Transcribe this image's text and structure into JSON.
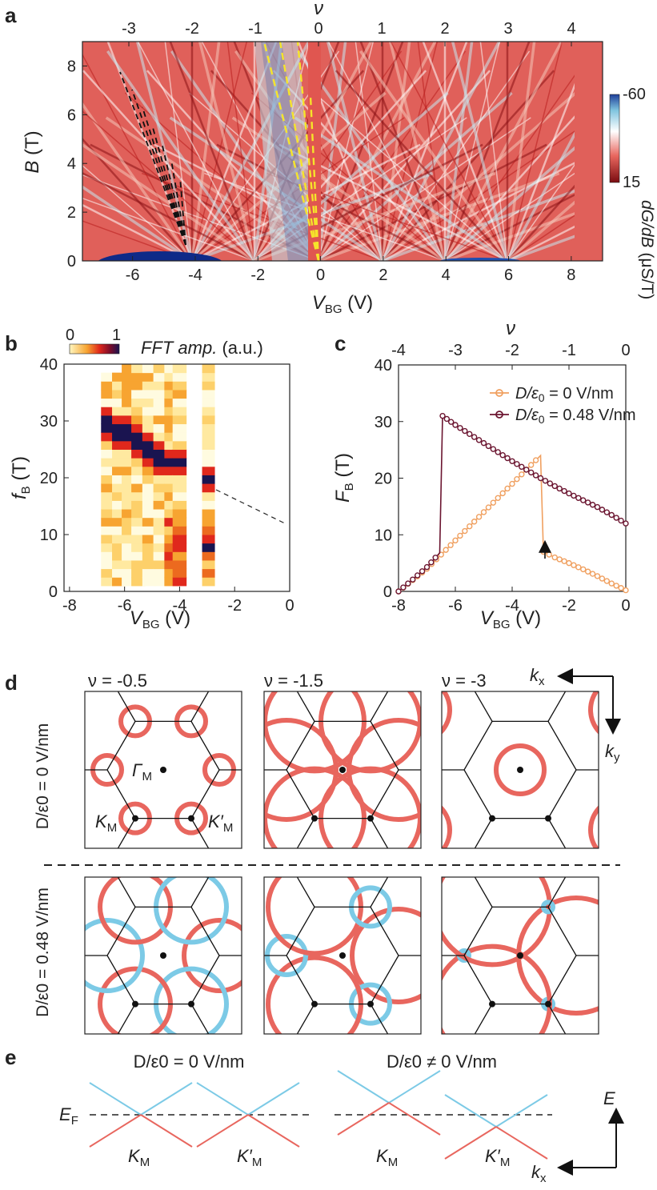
{
  "panels": {
    "a": {
      "label": "a",
      "top_axis_title": "ν",
      "top_ticks": [
        "-3",
        "-2",
        "-1",
        "0",
        "1",
        "2",
        "3",
        "4"
      ],
      "bottom_ticks": [
        "-6",
        "-4",
        "-2",
        "0",
        "2",
        "4",
        "6",
        "8"
      ],
      "y_ticks": [
        "0",
        "2",
        "4",
        "6",
        "8"
      ],
      "xlabel_main": "V",
      "xlabel_sub": "BG",
      "xlabel_unit": " (V)",
      "ylabel_main": "B",
      "ylabel_unit": " (T)",
      "colorbar": {
        "max_label": "-60",
        "min_label": "15",
        "title_main": "dG/dB",
        "title_unit": "(μS/T)"
      }
    },
    "b": {
      "label": "b",
      "colorbar": {
        "min_label": "0",
        "max_label": "1"
      },
      "title_main": "FFT amp.",
      "title_unit": " (a.u.)",
      "x_ticks": [
        "-8",
        "-6",
        "-4",
        "-2",
        "0"
      ],
      "y_ticks": [
        "0",
        "10",
        "20",
        "30",
        "40"
      ],
      "xlabel_main": "V",
      "xlabel_sub": "BG",
      "xlabel_unit": " (V)",
      "ylabel_main": "f",
      "ylabel_sub": "B",
      "ylabel_unit": " (T)"
    },
    "c": {
      "label": "c",
      "top_axis_title": "ν",
      "top_ticks": [
        "-4",
        "-3",
        "-2",
        "-1",
        "0"
      ],
      "x_ticks": [
        "-8",
        "-6",
        "-4",
        "-2",
        "0"
      ],
      "y_ticks": [
        "0",
        "10",
        "20",
        "30",
        "40"
      ],
      "xlabel_main": "V",
      "xlabel_sub": "BG",
      "xlabel_unit": " (V)",
      "ylabel_main": "F",
      "ylabel_sub": "B",
      "ylabel_unit": " (T)",
      "legend": [
        {
          "prefix": "D/ε",
          "sub": "0",
          "suffix": " = 0 V/nm",
          "color": "#f0a060"
        },
        {
          "prefix": "D/ε",
          "sub": "0",
          "suffix": " = 0.48 V/nm",
          "color": "#6b1530"
        }
      ]
    },
    "d": {
      "label": "d",
      "col_titles": [
        "ν = -0.5",
        "ν = -1.5",
        "ν = -3"
      ],
      "row_titles": [
        "D/ε0 = 0 V/nm",
        "D/ε0 = 0.48 V/nm"
      ],
      "axis_kx": "k",
      "axis_kx_sub": "x",
      "axis_ky": "k",
      "axis_ky_sub": "y",
      "point_labels": {
        "gamma": "Γ",
        "gamma_sub": "M",
        "K": "K",
        "K_sub": "M",
        "Kp": "K′",
        "Kp_sub": "M"
      }
    },
    "e": {
      "label": "e",
      "titles": [
        "D/ε0 = 0 V/nm",
        "D/ε0 ≠ 0 V/nm"
      ],
      "ef": "E",
      "ef_sub": "F",
      "valleys": [
        "K",
        "K′",
        "K",
        "K′"
      ],
      "valley_sub": "M",
      "axis_E": "E",
      "axis_kx": "k",
      "axis_kx_sub": "x"
    }
  },
  "colors": {
    "hole_red": "#e8665e",
    "elec_blue": "#7ccae6",
    "orange": "#f0a060",
    "maroon": "#6b1530",
    "yellow": "#f6e42a"
  },
  "chart_data": [
    {
      "id": "c",
      "type": "line",
      "xlabel": "VBG (V)",
      "ylabel": "FB (T)",
      "xlim": [
        -8,
        0
      ],
      "ylim": [
        0,
        40
      ],
      "top_axis": {
        "label": "ν",
        "range": [
          -4,
          0
        ]
      },
      "series": [
        {
          "name": "D/ε0 = 0 V/nm",
          "points": [
            [
              -8.0,
              0.0
            ],
            [
              -7.5,
              2.0
            ],
            [
              -7.0,
              4.0
            ],
            [
              -6.5,
              6.5
            ],
            [
              -6.0,
              9.0
            ],
            [
              -5.5,
              11.5
            ],
            [
              -5.0,
              14.0
            ],
            [
              -4.5,
              16.5
            ],
            [
              -4.0,
              19.0
            ],
            [
              -3.5,
              21.5
            ],
            [
              -3.0,
              24.0
            ],
            [
              -2.9,
              7.0
            ],
            [
              -2.5,
              6.0
            ],
            [
              -2.0,
              5.0
            ],
            [
              -1.5,
              3.9
            ],
            [
              -1.0,
              2.7
            ],
            [
              -0.5,
              1.4
            ],
            [
              0.0,
              0.2
            ]
          ]
        },
        {
          "name": "D/ε0 = 0.48 V/nm",
          "points": [
            [
              -8.0,
              0.0
            ],
            [
              -7.5,
              2.1
            ],
            [
              -7.0,
              4.3
            ],
            [
              -6.55,
              6.8
            ],
            [
              -6.45,
              31.0
            ],
            [
              -6.0,
              29.4
            ],
            [
              -5.5,
              27.8
            ],
            [
              -5.0,
              26.2
            ],
            [
              -4.5,
              24.6
            ],
            [
              -4.0,
              23.0
            ],
            [
              -3.5,
              21.5
            ],
            [
              -3.0,
              20.0
            ],
            [
              -2.5,
              18.6
            ],
            [
              -2.0,
              17.3
            ],
            [
              -1.5,
              16.1
            ],
            [
              -1.0,
              14.9
            ],
            [
              -0.5,
              13.5
            ],
            [
              0.0,
              12.0
            ]
          ]
        }
      ],
      "annotations": [
        "arrow at VBG ≈ -2.9 V"
      ]
    },
    {
      "id": "b",
      "type": "heatmap",
      "xlabel": "VBG (V)",
      "ylabel": "fB (T)",
      "xlim": [
        -8,
        0
      ],
      "ylim": [
        0,
        40
      ],
      "colorbar_range": [
        0,
        1
      ],
      "peak_track": [
        [
          -6.5,
          28.5
        ],
        [
          -6.0,
          27.0
        ],
        [
          -5.5,
          25.5
        ],
        [
          -5.0,
          24.0
        ],
        [
          -4.5,
          23.0
        ],
        [
          -4.0,
          22.0
        ],
        [
          -3.0,
          19.0
        ]
      ]
    },
    {
      "id": "a",
      "type": "heatmap",
      "xlabel": "VBG (V)",
      "ylabel": "B (T)",
      "xlim": [
        -7.6,
        9.0
      ],
      "ylim": [
        0,
        9
      ],
      "top_axis": {
        "label": "ν",
        "range": [
          -3.8,
          4.5
        ]
      },
      "colorbar_range": [
        15,
        -60
      ]
    }
  ]
}
